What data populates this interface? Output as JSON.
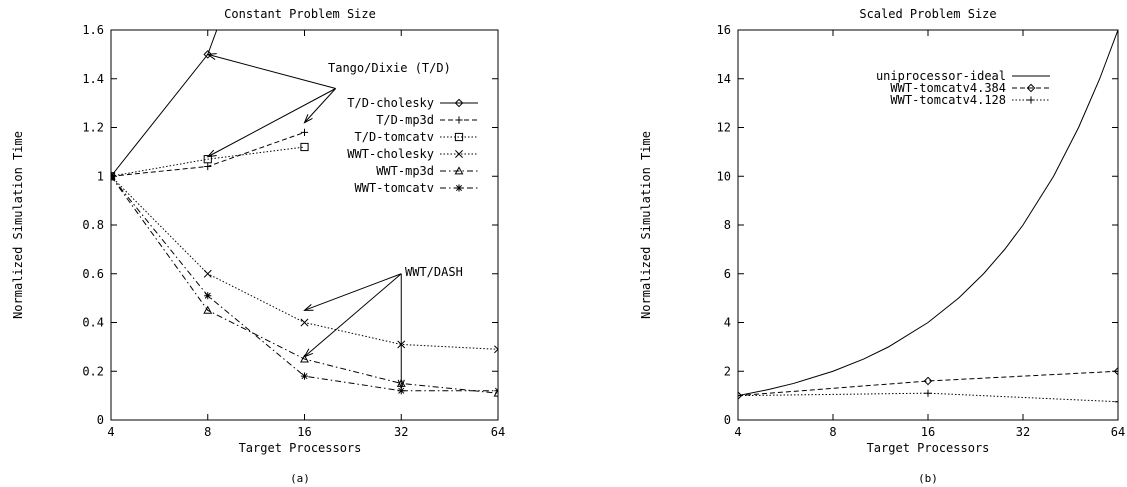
{
  "figure": {
    "subcaptions": [
      "(a)",
      "(b)"
    ]
  },
  "chart_data": [
    {
      "type": "line",
      "title": "Constant Problem Size",
      "xlabel": "Target Processors",
      "ylabel": "Normalized Simulation Time",
      "x_scale": "log2",
      "xticks": [
        4,
        8,
        16,
        32,
        64
      ],
      "yticks": [
        "0",
        "0.2",
        "0.4",
        "0.6",
        "0.8",
        "1",
        "1.2",
        "1.4",
        "1.6"
      ],
      "xlim": [
        4,
        64
      ],
      "ylim": [
        0,
        1.6
      ],
      "grid": false,
      "legend_position": "top-right",
      "series": [
        {
          "name": "T/D-cholesky",
          "marker": "diamond",
          "dash": "solid",
          "x": [
            4,
            8,
            9.4
          ],
          "y": [
            1,
            1.5,
            1.75
          ]
        },
        {
          "name": "T/D-mp3d",
          "marker": "plus",
          "dash": "dashed",
          "x": [
            4,
            8,
            16
          ],
          "y": [
            1,
            1.04,
            1.18
          ]
        },
        {
          "name": "T/D-tomcatv",
          "marker": "square",
          "dash": "dotted",
          "x": [
            4,
            8,
            16
          ],
          "y": [
            1,
            1.07,
            1.12
          ]
        },
        {
          "name": "WWT-cholesky",
          "marker": "cross",
          "dash": "dotted",
          "x": [
            4,
            8,
            16,
            32,
            64
          ],
          "y": [
            1,
            0.6,
            0.4,
            0.31,
            0.29
          ]
        },
        {
          "name": "WWT-mp3d",
          "marker": "triangle",
          "dash": "dashdot",
          "x": [
            4,
            8,
            16,
            32,
            64
          ],
          "y": [
            1,
            0.45,
            0.25,
            0.15,
            0.11
          ]
        },
        {
          "name": "WWT-tomcatv",
          "marker": "star",
          "dash": "dashdot",
          "x": [
            4,
            8,
            16,
            32,
            64
          ],
          "y": [
            1,
            0.51,
            0.18,
            0.12,
            0.12
          ]
        }
      ],
      "annotations": [
        {
          "text": "Tango/Dixie (T/D)",
          "anchor_x": 20,
          "anchor_y": 1.36,
          "targets": [
            [
              8,
              1.5
            ],
            [
              8,
              1.08
            ],
            [
              16,
              1.22
            ]
          ]
        },
        {
          "text": "WWT/DASH",
          "anchor_x": 32,
          "anchor_y": 0.6,
          "targets": [
            [
              16,
              0.45
            ],
            [
              16,
              0.26
            ],
            [
              32,
              0.13
            ]
          ]
        }
      ]
    },
    {
      "type": "line",
      "title": "Scaled Problem Size",
      "xlabel": "Target Processors",
      "ylabel": "Normalized Simulation Time",
      "x_scale": "log2",
      "xticks": [
        4,
        8,
        16,
        32,
        64
      ],
      "yticks": [
        "0",
        "2",
        "4",
        "6",
        "8",
        "10",
        "12",
        "14",
        "16"
      ],
      "xlim": [
        4,
        64
      ],
      "ylim": [
        0,
        16
      ],
      "grid": false,
      "legend_position": "top-left",
      "series": [
        {
          "name": "uniprocessor-ideal",
          "marker": "none",
          "dash": "solid",
          "x": [
            4,
            5,
            6,
            8,
            10,
            12,
            16,
            20,
            24,
            28,
            32,
            40,
            48,
            56,
            64
          ],
          "y": [
            1,
            1.25,
            1.5,
            2,
            2.5,
            3,
            4,
            5,
            6,
            7,
            8,
            10,
            12,
            14,
            16
          ]
        },
        {
          "name": "WWT-tomcatv4.384",
          "marker": "diamond",
          "dash": "dashed",
          "x": [
            4,
            16,
            64
          ],
          "y": [
            1,
            1.6,
            2.0
          ]
        },
        {
          "name": "WWT-tomcatv4.128",
          "marker": "plus",
          "dash": "dotted",
          "x": [
            4,
            16,
            64
          ],
          "y": [
            1,
            1.1,
            0.75
          ]
        }
      ]
    }
  ]
}
